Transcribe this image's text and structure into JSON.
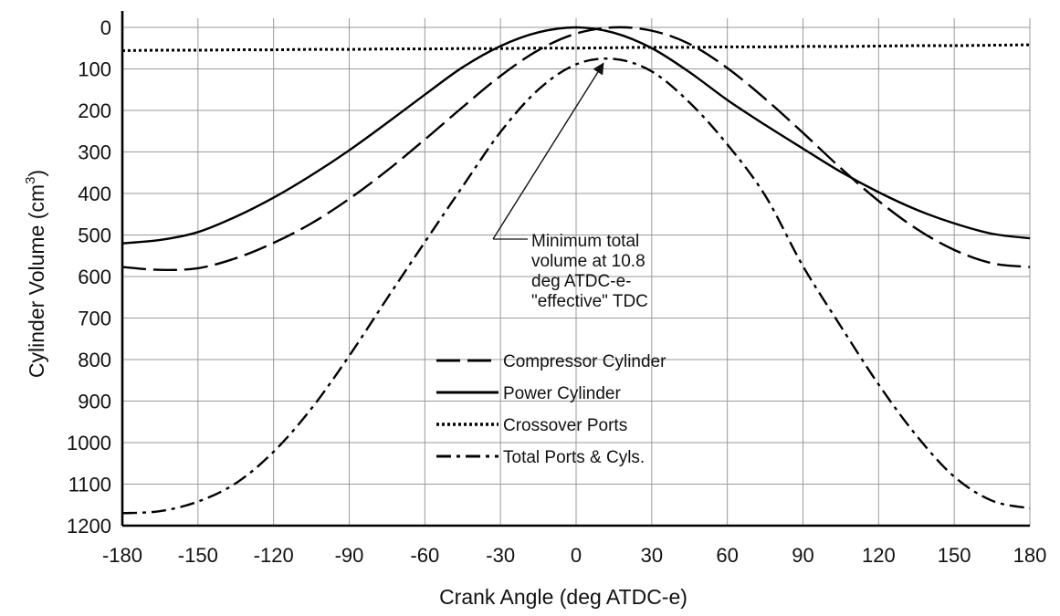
{
  "chart_data": {
    "type": "line",
    "xlabel": "Crank Angle (deg ATDC-e)",
    "ylabel": "Cylinder Volume (cm",
    "ylabel_sup": "3",
    "ylabel_close": ")",
    "xlim": [
      -180,
      180
    ],
    "ylim": [
      0,
      1200
    ],
    "y_inverted": true,
    "grid": true,
    "xticks": [
      -180,
      -150,
      -120,
      -90,
      -60,
      -30,
      0,
      30,
      60,
      90,
      120,
      150,
      180
    ],
    "xtick_labels": [
      "-180",
      "-150",
      "-120",
      "-90",
      "-60",
      "-30",
      "0",
      "30",
      "60",
      "90",
      "120",
      "150",
      "180"
    ],
    "yticks": [
      0,
      100,
      200,
      300,
      400,
      500,
      600,
      700,
      800,
      900,
      1000,
      1100,
      1200
    ],
    "ytick_labels": [
      "0",
      "100",
      "200",
      "300",
      "400",
      "500",
      "600",
      "700",
      "800",
      "900",
      "1000",
      "1100",
      "1200"
    ],
    "legend_position": "center",
    "x": [
      -180,
      -165,
      -150,
      -135,
      -120,
      -105,
      -90,
      -75,
      -60,
      -45,
      -30,
      -15,
      0,
      15,
      30,
      45,
      60,
      75,
      90,
      105,
      120,
      135,
      150,
      165,
      180
    ],
    "series": [
      {
        "name": "Compressor Cylinder",
        "style": "dashed",
        "values": [
          577,
          584,
          580,
          556,
          519,
          472,
          413,
          345,
          270,
          192,
          117,
          55,
          15,
          0,
          8,
          40,
          98,
          172,
          254,
          339,
          418,
          485,
          536,
          568,
          577
        ]
      },
      {
        "name": "Power Cylinder",
        "style": "solid",
        "values": [
          520,
          512,
          493,
          456,
          410,
          356,
          296,
          230,
          162,
          96,
          45,
          12,
          0,
          13,
          50,
          108,
          175,
          235,
          292,
          348,
          397,
          439,
          472,
          497,
          508
        ]
      },
      {
        "name": "Crossover Ports",
        "style": "dotted",
        "values": [
          56,
          55,
          55,
          54,
          54,
          53,
          53,
          52,
          52,
          51,
          51,
          50,
          50,
          49,
          48,
          48,
          47,
          47,
          46,
          46,
          45,
          44,
          44,
          43,
          42
        ]
      },
      {
        "name": "Total Ports & Cyls.",
        "style": "dashdot",
        "values": [
          1170,
          1165,
          1142,
          1098,
          1022,
          918,
          791,
          653,
          517,
          383,
          252,
          150,
          89,
          76,
          106,
          181,
          282,
          405,
          575,
          720,
          860,
          983,
          1082,
          1140,
          1158
        ]
      }
    ],
    "annotation": {
      "lines": [
        "Minimum total",
        "volume at 10.8",
        "deg ATDC-e-",
        "\"effective\" TDC"
      ],
      "arrow_to": {
        "x": 10.8,
        "y": 78
      }
    }
  }
}
